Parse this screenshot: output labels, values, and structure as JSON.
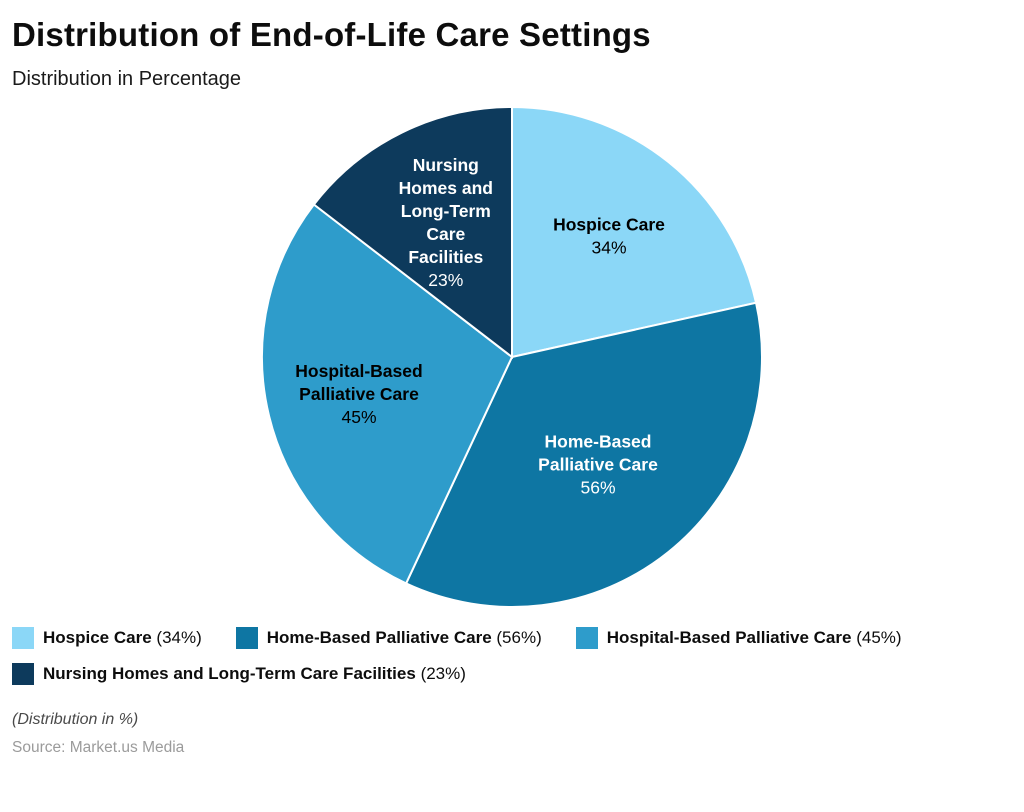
{
  "header": {
    "title": "Distribution of End-of-Life Care Settings",
    "subtitle": "Distribution in Percentage"
  },
  "chart_data": {
    "type": "pie",
    "title": "Distribution of End-of-Life Care Settings",
    "subtitle": "Distribution in Percentage",
    "unit": "%",
    "start_angle_deg": 0,
    "direction": "clockwise",
    "legend_position": "bottom",
    "slices": [
      {
        "name": "Hospice Care",
        "value": 34,
        "color": "#8BD7F7",
        "label_lines": [
          "Hospice Care"
        ],
        "value_label": "34%",
        "text_color": "#000000",
        "label_radius": 0.62
      },
      {
        "name": "Home-Based Palliative Care",
        "value": 56,
        "color": "#0E76A3",
        "label_lines": [
          "Home-Based",
          "Palliative Care"
        ],
        "value_label": "56%",
        "text_color": "#ffffff",
        "label_radius": 0.55
      },
      {
        "name": "Hospital-Based Palliative Care",
        "value": 45,
        "color": "#2E9CCB",
        "label_lines": [
          "Hospital-Based",
          "Palliative Care"
        ],
        "value_label": "45%",
        "text_color": "#000000",
        "label_radius": 0.63
      },
      {
        "name": "Nursing Homes and Long-Term Care Facilities",
        "value": 23,
        "color": "#0D3A5C",
        "label_lines": [
          "Nursing",
          "Homes and",
          "Long-Term",
          "Care",
          "Facilities"
        ],
        "value_label": "23%",
        "text_color": "#ffffff",
        "label_radius": 0.6
      }
    ]
  },
  "legend": {
    "items": [
      {
        "name": "Hospice Care",
        "pct": "(34%)"
      },
      {
        "name": "Home-Based Palliative Care",
        "pct": "(56%)"
      },
      {
        "name": "Hospital-Based Palliative Care",
        "pct": "(45%)"
      },
      {
        "name": "Nursing Homes and Long-Term Care Facilities",
        "pct": "(23%)"
      }
    ]
  },
  "footer": {
    "note": "(Distribution in %)",
    "source": "Source: Market.us Media"
  }
}
